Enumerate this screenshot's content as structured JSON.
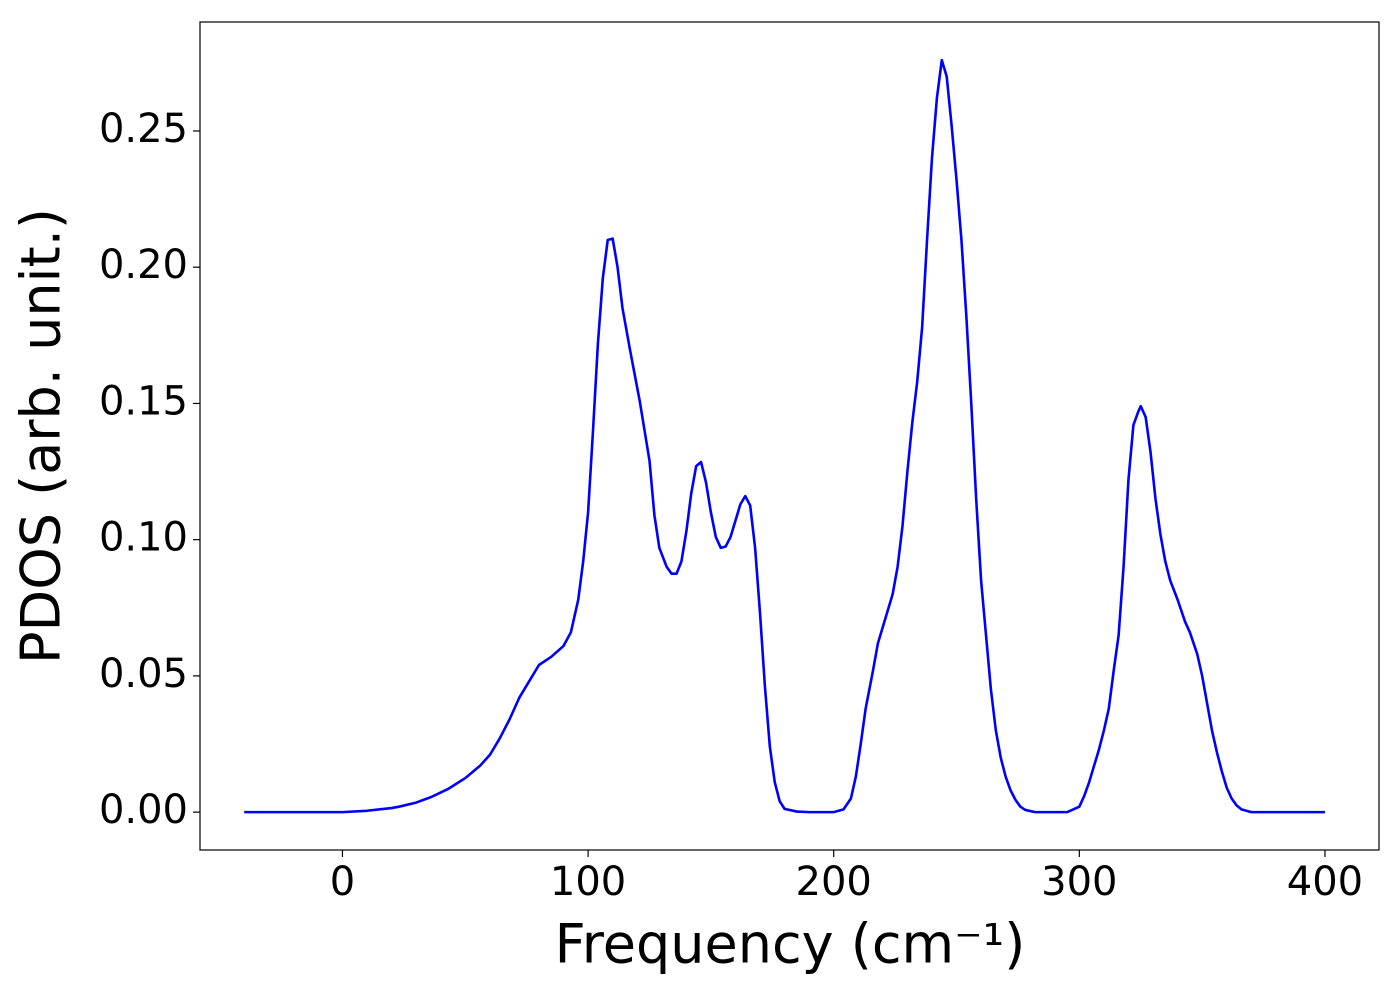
{
  "chart_data": {
    "type": "line",
    "x_label": "Frequency (cm⁻¹)",
    "y_label": "PDOS (arb. unit.)",
    "xlim": [
      -58,
      422
    ],
    "ylim": [
      -0.0139,
      0.29
    ],
    "xticks": [
      0,
      100,
      200,
      300,
      400
    ],
    "yticks": [
      {
        "value": 0,
        "label": "0.00"
      },
      0.05,
      {
        "value": 0.1,
        "label": "0.10"
      },
      0.15,
      {
        "value": 0.2,
        "label": "0.20"
      },
      0.25
    ],
    "grid": false,
    "x": [
      -40,
      -20,
      0,
      10,
      20,
      23,
      30,
      36,
      43,
      50,
      56,
      60,
      64,
      68,
      72,
      76,
      80,
      85,
      90,
      93,
      96,
      98,
      100,
      102,
      104,
      106,
      108,
      110,
      112,
      114,
      117,
      121,
      125,
      127,
      129,
      132,
      134,
      136,
      138,
      140,
      142,
      144,
      146,
      148,
      150,
      152,
      154,
      156,
      158,
      160,
      162,
      164,
      166,
      168,
      170,
      172,
      174,
      176,
      178,
      180,
      185,
      190,
      200,
      204,
      207,
      209,
      211,
      213,
      216,
      218,
      220,
      222,
      224,
      226,
      228,
      230,
      232,
      234,
      236,
      238,
      240,
      242,
      244,
      246,
      248,
      250,
      252,
      254,
      256,
      258,
      260,
      262,
      264,
      266,
      268,
      270,
      272,
      274,
      276,
      278,
      282,
      295,
      300,
      302,
      304,
      306,
      308,
      310,
      312,
      314,
      316,
      318,
      320,
      322,
      324,
      325,
      327,
      329,
      331,
      333,
      335,
      337,
      340,
      343,
      345,
      348,
      350,
      352,
      354,
      356,
      358,
      360,
      362,
      364,
      366,
      370,
      400
    ],
    "series": [
      {
        "color": "#0000ff",
        "values": [
          0,
          0,
          0,
          0.0005,
          0.0015,
          0.002,
          0.0035,
          0.0055,
          0.0085,
          0.0125,
          0.017,
          0.021,
          0.027,
          0.034,
          0.042,
          0.048,
          0.054,
          0.057,
          0.061,
          0.066,
          0.078,
          0.092,
          0.11,
          0.14,
          0.172,
          0.196,
          0.21,
          0.2105,
          0.2,
          0.185,
          0.17,
          0.151,
          0.129,
          0.109,
          0.097,
          0.09,
          0.0875,
          0.0875,
          0.092,
          0.103,
          0.117,
          0.127,
          0.1285,
          0.121,
          0.11,
          0.101,
          0.097,
          0.0975,
          0.101,
          0.107,
          0.113,
          0.116,
          0.1125,
          0.097,
          0.073,
          0.046,
          0.024,
          0.011,
          0.004,
          0.0012,
          0.0002,
          0,
          0,
          0.001,
          0.005,
          0.013,
          0.025,
          0.038,
          0.052,
          0.062,
          0.068,
          0.074,
          0.08,
          0.09,
          0.105,
          0.125,
          0.143,
          0.158,
          0.178,
          0.21,
          0.24,
          0.262,
          0.276,
          0.27,
          0.252,
          0.232,
          0.21,
          0.182,
          0.15,
          0.115,
          0.085,
          0.065,
          0.045,
          0.03,
          0.02,
          0.013,
          0.008,
          0.0045,
          0.002,
          0.0008,
          0,
          0,
          0.002,
          0.006,
          0.011,
          0.017,
          0.023,
          0.03,
          0.038,
          0.052,
          0.065,
          0.09,
          0.122,
          0.142,
          0.147,
          0.149,
          0.145,
          0.132,
          0.115,
          0.102,
          0.092,
          0.085,
          0.078,
          0.07,
          0.066,
          0.058,
          0.05,
          0.04,
          0.03,
          0.022,
          0.015,
          0.009,
          0.005,
          0.0025,
          0.001,
          0,
          0
        ]
      }
    ]
  }
}
